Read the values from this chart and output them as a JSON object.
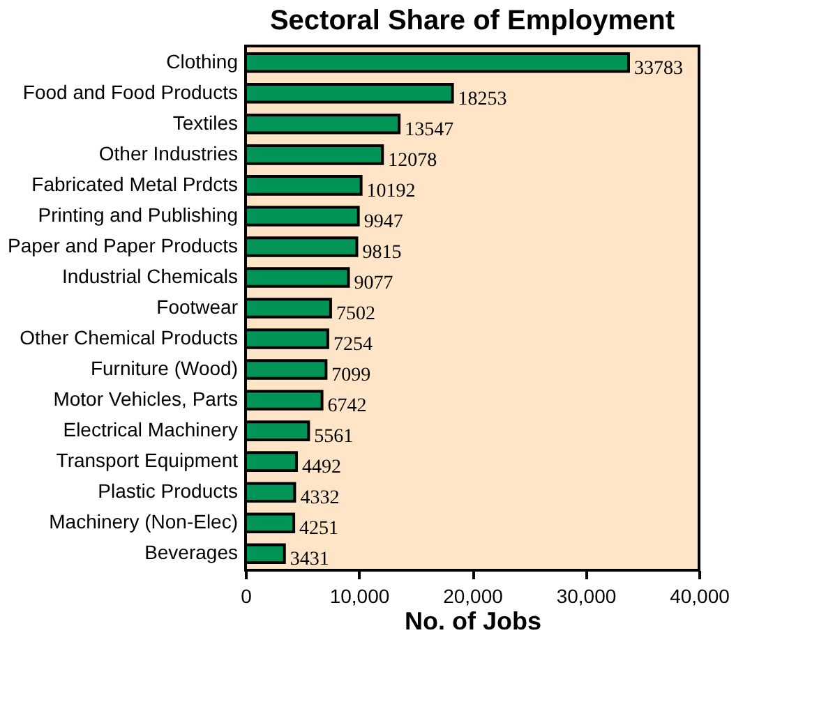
{
  "chart_data": {
    "type": "bar",
    "orientation": "horizontal",
    "title": "Sectoral Share of Employment",
    "xlabel": "No. of Jobs",
    "categories": [
      "Clothing",
      "Food and Food Products",
      "Textiles",
      "Other Industries",
      "Fabricated Metal Prdcts",
      "Printing and Publishing",
      "Paper and Paper Products",
      "Industrial Chemicals",
      "Footwear",
      "Other Chemical Products",
      "Furniture (Wood)",
      "Motor Vehicles, Parts",
      "Electrical Machinery",
      "Transport Equipment",
      "Plastic Products",
      "Machinery (Non-Elec)",
      "Beverages"
    ],
    "values": [
      33783,
      18253,
      13547,
      12078,
      10192,
      9947,
      9815,
      9077,
      7502,
      7254,
      7099,
      6742,
      5561,
      4492,
      4332,
      4251,
      3431
    ],
    "color": "#009457",
    "xlim": [
      0,
      40000
    ],
    "xticks": [
      0,
      {
        "value": 10000,
        "label": "10,000"
      },
      {
        "value": 20000,
        "label": "20,000"
      },
      {
        "value": 30000,
        "label": "30,000"
      },
      {
        "value": 40000,
        "label": "40,000"
      }
    ],
    "data_labels": true
  }
}
